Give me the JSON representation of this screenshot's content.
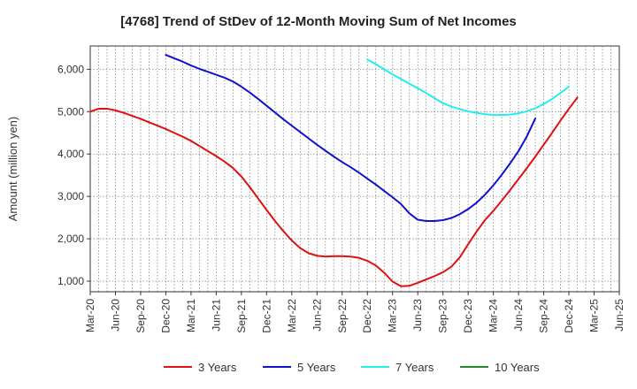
{
  "chart_data": {
    "type": "line",
    "title": "[4768]  Trend of StDev of 12-Month Moving Sum of Net Incomes",
    "ylabel": "Amount (million yen)",
    "xlabel": "",
    "ylim": [
      750,
      6550
    ],
    "yticks": [
      1000,
      2000,
      3000,
      4000,
      5000,
      6000
    ],
    "ytick_labels": [
      "1,000",
      "2,000",
      "3,000",
      "4,000",
      "5,000",
      "6,000"
    ],
    "x_labels": [
      "Mar-20",
      "Jun-20",
      "Sep-20",
      "Dec-20",
      "Mar-21",
      "Jun-21",
      "Sep-21",
      "Dec-21",
      "Mar-22",
      "Jun-22",
      "Sep-22",
      "Dec-22",
      "Mar-23",
      "Jun-23",
      "Sep-23",
      "Dec-23",
      "Mar-24",
      "Jun-24",
      "Sep-24",
      "Dec-24",
      "Mar-25",
      "Jun-25"
    ],
    "grid": true,
    "legend_position": "bottom",
    "series": [
      {
        "name": "3 Years",
        "color": "#dd1111",
        "start": "Mar-20",
        "values": [
          5000,
          5070,
          5070,
          5030,
          4970,
          4900,
          4830,
          4750,
          4670,
          4590,
          4500,
          4410,
          4310,
          4190,
          4070,
          3950,
          3820,
          3670,
          3470,
          3220,
          2950,
          2680,
          2420,
          2180,
          1960,
          1780,
          1660,
          1600,
          1580,
          1590,
          1590,
          1580,
          1550,
          1480,
          1370,
          1200,
          990,
          880,
          890,
          960,
          1040,
          1120,
          1210,
          1340,
          1560,
          1870,
          2170,
          2440,
          2660,
          2900,
          3150,
          3410,
          3670,
          3940,
          4220,
          4500,
          4790,
          5070,
          5330
        ]
      },
      {
        "name": "5 Years",
        "color": "#1111cc",
        "start": "Dec-20",
        "values": [
          6340,
          6260,
          6180,
          6090,
          6010,
          5940,
          5870,
          5800,
          5710,
          5590,
          5450,
          5300,
          5140,
          4980,
          4820,
          4670,
          4520,
          4370,
          4220,
          4080,
          3940,
          3810,
          3690,
          3560,
          3420,
          3280,
          3130,
          2980,
          2820,
          2600,
          2450,
          2420,
          2420,
          2440,
          2490,
          2580,
          2700,
          2850,
          3040,
          3260,
          3510,
          3780,
          4070,
          4420,
          4840
        ]
      },
      {
        "name": "7 Years",
        "color": "#22eeee",
        "start": "Dec-22",
        "values": [
          6230,
          6120,
          6000,
          5880,
          5770,
          5660,
          5550,
          5440,
          5320,
          5200,
          5120,
          5060,
          5010,
          4970,
          4940,
          4920,
          4920,
          4930,
          4960,
          5010,
          5080,
          5180,
          5300,
          5440,
          5590
        ]
      },
      {
        "name": "10 Years",
        "color": "#228822",
        "start": "Mar-20",
        "values": []
      }
    ]
  }
}
